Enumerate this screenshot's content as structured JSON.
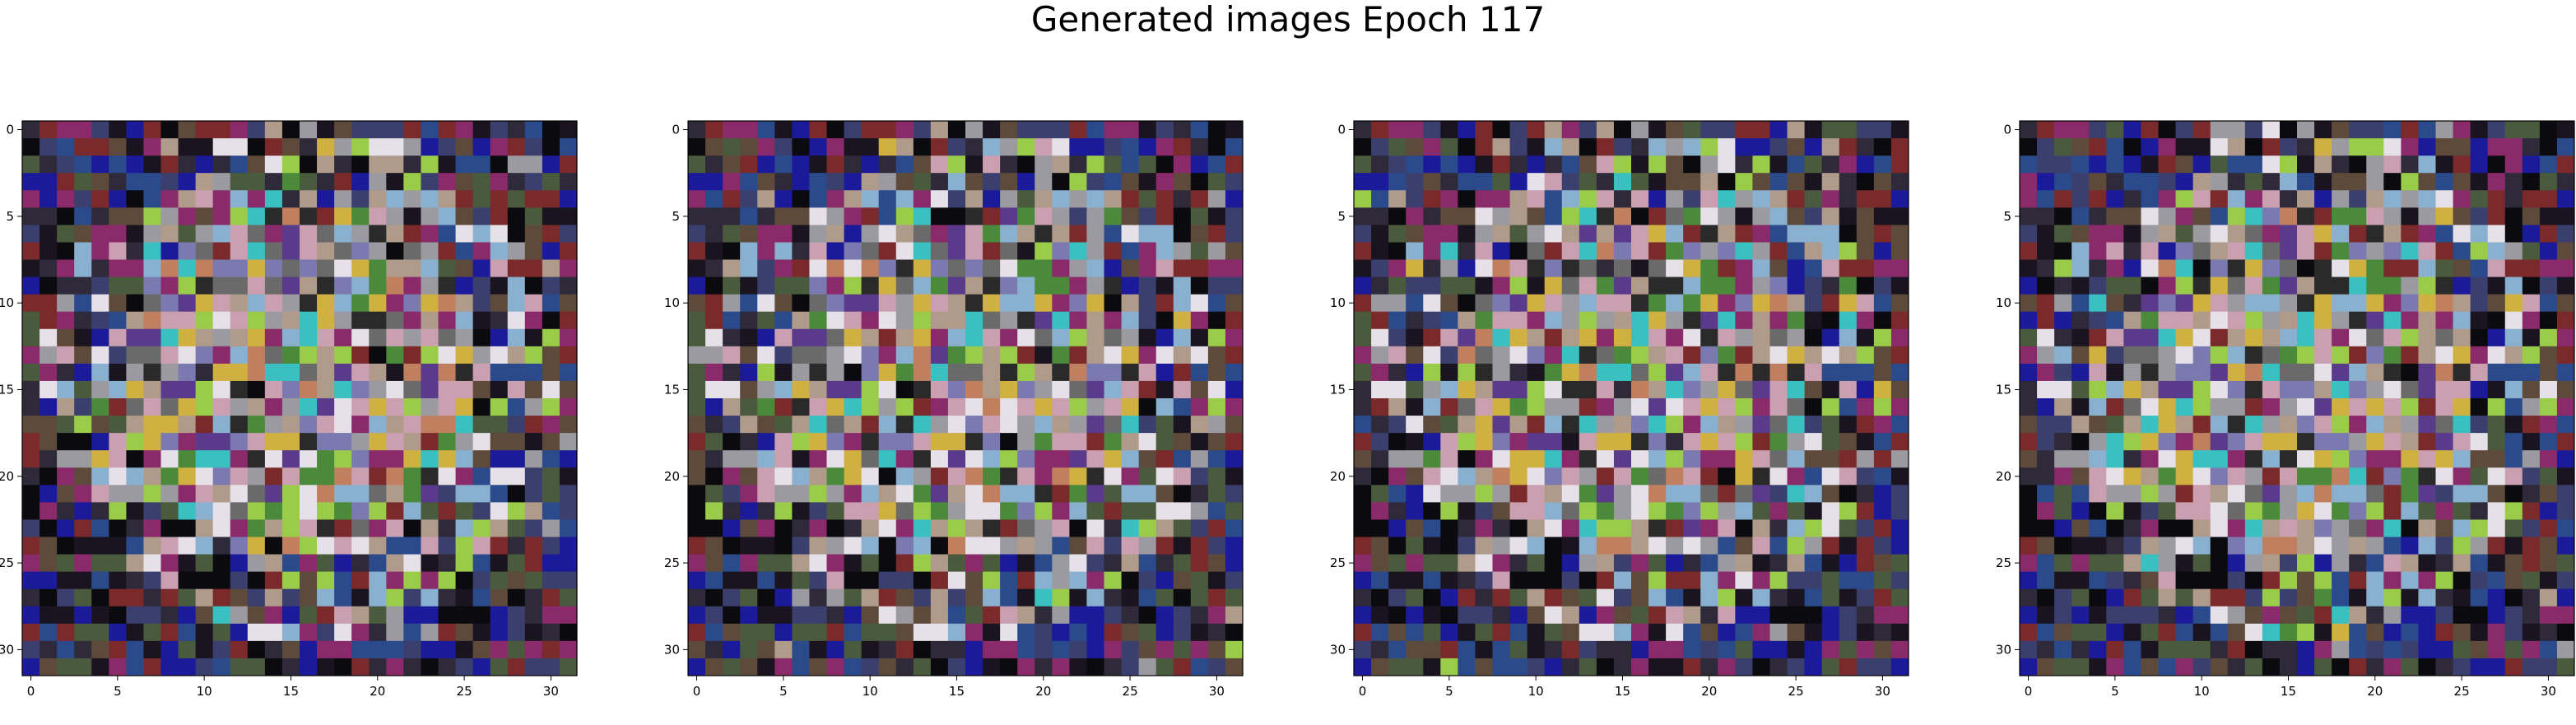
{
  "title": "Generated images Epoch 117",
  "chart_data": {
    "type": "heatmap",
    "title": "Generated images Epoch 117",
    "image_grid": {
      "rows": 32,
      "cols": 32,
      "color_mode": "rgb",
      "seed_note": ""
    },
    "panels": [
      {
        "xticks": [
          0,
          5,
          10,
          15,
          20,
          25,
          30
        ],
        "yticks": [
          0,
          5,
          10,
          15,
          20,
          25,
          30
        ],
        "xlim": [
          -0.5,
          31.5
        ],
        "ylim": [
          31.5,
          -0.5
        ]
      },
      {
        "xticks": [
          0,
          5,
          10,
          15,
          20,
          25,
          30
        ],
        "yticks": [
          0,
          5,
          10,
          15,
          20,
          25,
          30
        ],
        "xlim": [
          -0.5,
          31.5
        ],
        "ylim": [
          31.5,
          -0.5
        ]
      },
      {
        "xticks": [
          0,
          5,
          10,
          15,
          20,
          25,
          30
        ],
        "yticks": [
          0,
          5,
          10,
          15,
          20,
          25,
          30
        ],
        "xlim": [
          -0.5,
          31.5
        ],
        "ylim": [
          31.5,
          -0.5
        ]
      },
      {
        "xticks": [
          0,
          5,
          10,
          15,
          20,
          25,
          30
        ],
        "yticks": [
          0,
          5,
          10,
          15,
          20,
          25,
          30
        ],
        "xlim": [
          -0.5,
          31.5
        ],
        "ylim": [
          31.5,
          -0.5
        ]
      }
    ],
    "palette": [
      "#0b0b0f",
      "#1a1420",
      "#2e2a3a",
      "#3b3f6e",
      "#4a5a3c",
      "#5e4a3a",
      "#2b4a8c",
      "#1a1a9a",
      "#7a2a2a",
      "#8a2a6a",
      "#9a9aa0",
      "#b09a8a",
      "#9acc4a",
      "#caa0b0",
      "#e6e0e8",
      "#8ab0d0",
      "#3ac0c0",
      "#d0b040",
      "#4a8a3a",
      "#6a6a6a",
      "#5a3a8a",
      "#c08060",
      "#2a2a2a",
      "#7a7ab0"
    ]
  }
}
